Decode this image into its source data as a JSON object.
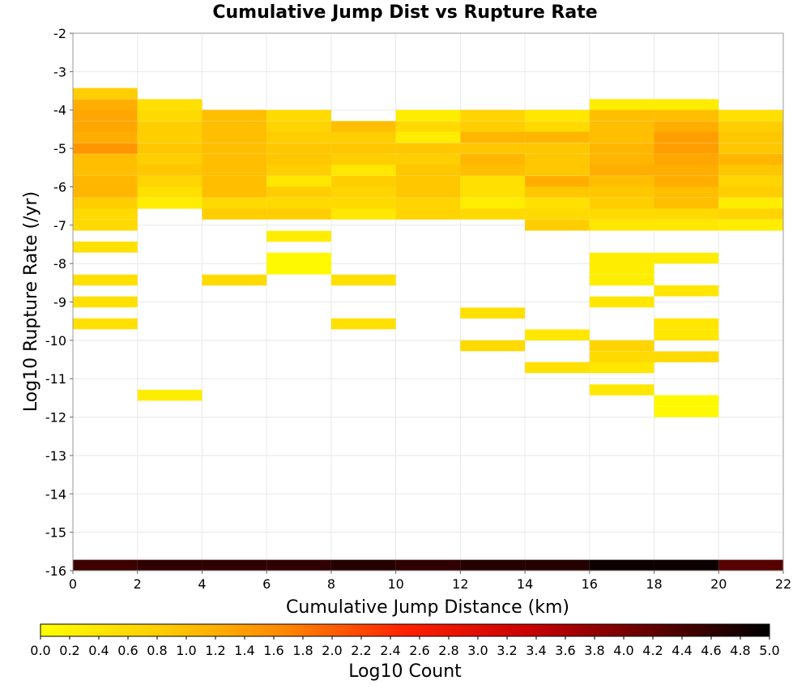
{
  "chart_data": {
    "type": "heatmap",
    "title": "Cumulative Jump Dist vs Rupture Rate",
    "xlabel": "Cumulative Jump Distance (km)",
    "ylabel": "Log10 Rupture Rate (/yr)",
    "colorbar_label": "Log10 Count",
    "xlim": [
      0,
      22
    ],
    "ylim": [
      -16,
      -2
    ],
    "x_ticks": [
      "0",
      "2",
      "4",
      "6",
      "8",
      "10",
      "12",
      "14",
      "16",
      "18",
      "20",
      "22"
    ],
    "y_ticks": [
      "-2",
      "-3",
      "-4",
      "-5",
      "-6",
      "-7",
      "-8",
      "-9",
      "-10",
      "-11",
      "-12",
      "-13",
      "-14",
      "-15",
      "-16"
    ],
    "colorbar_ticks": [
      "0.0",
      "0.2",
      "0.4",
      "0.6",
      "0.8",
      "1.0",
      "1.2",
      "1.4",
      "1.6",
      "1.8",
      "2.0",
      "2.2",
      "2.4",
      "2.6",
      "2.8",
      "3.0",
      "3.2",
      "3.4",
      "3.6",
      "3.8",
      "4.0",
      "4.2",
      "4.4",
      "4.6",
      "4.8",
      "5.0"
    ],
    "colorbar_range": [
      0,
      5
    ],
    "x_bin_width": 2,
    "y_bin_height": 0.2857,
    "grid": true,
    "colormap": [
      "#ffff00",
      "#ffcc00",
      "#ff8800",
      "#ff2200",
      "#cc0000",
      "#660000",
      "#000000"
    ],
    "columns": [
      {
        "x": 0,
        "cells": [
          [
            -3.57,
            0.8
          ],
          [
            -3.86,
            1.2
          ],
          [
            -4.14,
            1.3
          ],
          [
            -4.43,
            1.3
          ],
          [
            -4.71,
            1.2
          ],
          [
            -5.0,
            1.5
          ],
          [
            -5.29,
            1.0
          ],
          [
            -5.57,
            1.0
          ],
          [
            -5.86,
            1.1
          ],
          [
            -6.14,
            1.1
          ],
          [
            -6.43,
            0.8
          ],
          [
            -6.71,
            0.6
          ],
          [
            -7.0,
            0.6
          ],
          [
            -7.57,
            0.5
          ],
          [
            -8.43,
            0.5
          ],
          [
            -9.0,
            0.5
          ],
          [
            -9.57,
            0.5
          ],
          [
            -15.86,
            4.5
          ]
        ]
      },
      {
        "x": 2,
        "cells": [
          [
            -3.86,
            0.5
          ],
          [
            -4.14,
            0.6
          ],
          [
            -4.43,
            0.8
          ],
          [
            -4.71,
            0.8
          ],
          [
            -5.0,
            0.9
          ],
          [
            -5.29,
            0.8
          ],
          [
            -5.57,
            0.9
          ],
          [
            -5.86,
            0.7
          ],
          [
            -6.14,
            0.5
          ],
          [
            -6.43,
            0.3
          ],
          [
            -11.43,
            0.3
          ],
          [
            -15.86,
            4.6
          ]
        ]
      },
      {
        "x": 4,
        "cells": [
          [
            -4.14,
            1.0
          ],
          [
            -4.43,
            1.0
          ],
          [
            -4.71,
            1.0
          ],
          [
            -5.0,
            1.0
          ],
          [
            -5.29,
            1.0
          ],
          [
            -5.57,
            1.0
          ],
          [
            -5.86,
            1.0
          ],
          [
            -6.14,
            1.0
          ],
          [
            -6.43,
            0.6
          ],
          [
            -6.71,
            0.8
          ],
          [
            -8.43,
            0.6
          ],
          [
            -15.86,
            4.6
          ]
        ]
      },
      {
        "x": 6,
        "cells": [
          [
            -4.14,
            0.6
          ],
          [
            -4.43,
            0.7
          ],
          [
            -4.71,
            0.8
          ],
          [
            -5.0,
            0.9
          ],
          [
            -5.29,
            0.9
          ],
          [
            -5.57,
            0.8
          ],
          [
            -5.86,
            0.4
          ],
          [
            -6.14,
            0.8
          ],
          [
            -6.43,
            0.6
          ],
          [
            -6.71,
            0.8
          ],
          [
            -7.29,
            0.3
          ],
          [
            -7.86,
            0.1
          ],
          [
            -8.14,
            0.1
          ],
          [
            -15.86,
            4.6
          ]
        ]
      },
      {
        "x": 8,
        "cells": [
          [
            -4.43,
            1.0
          ],
          [
            -4.71,
            0.8
          ],
          [
            -5.0,
            0.9
          ],
          [
            -5.29,
            0.8
          ],
          [
            -5.57,
            0.4
          ],
          [
            -5.86,
            0.8
          ],
          [
            -6.14,
            0.7
          ],
          [
            -6.43,
            0.6
          ],
          [
            -6.71,
            0.4
          ],
          [
            -8.43,
            0.5
          ],
          [
            -9.57,
            0.5
          ],
          [
            -15.86,
            4.7
          ]
        ]
      },
      {
        "x": 10,
        "cells": [
          [
            -4.14,
            0.3
          ],
          [
            -4.43,
            0.6
          ],
          [
            -4.71,
            0.3
          ],
          [
            -5.0,
            0.9
          ],
          [
            -5.29,
            0.8
          ],
          [
            -5.57,
            0.9
          ],
          [
            -5.86,
            0.9
          ],
          [
            -6.14,
            0.9
          ],
          [
            -6.43,
            0.7
          ],
          [
            -6.71,
            0.7
          ],
          [
            -15.86,
            4.6
          ]
        ]
      },
      {
        "x": 12,
        "cells": [
          [
            -4.14,
            0.7
          ],
          [
            -4.43,
            0.8
          ],
          [
            -4.71,
            1.1
          ],
          [
            -5.0,
            0.9
          ],
          [
            -5.29,
            1.1
          ],
          [
            -5.57,
            1.0
          ],
          [
            -5.86,
            0.5
          ],
          [
            -6.14,
            0.5
          ],
          [
            -6.43,
            0.3
          ],
          [
            -6.71,
            0.6
          ],
          [
            -9.29,
            0.5
          ],
          [
            -10.14,
            0.6
          ],
          [
            -15.86,
            4.7
          ]
        ]
      },
      {
        "x": 14,
        "cells": [
          [
            -4.14,
            0.4
          ],
          [
            -4.43,
            0.6
          ],
          [
            -4.71,
            1.1
          ],
          [
            -5.0,
            0.9
          ],
          [
            -5.29,
            0.9
          ],
          [
            -5.57,
            0.9
          ],
          [
            -5.86,
            1.2
          ],
          [
            -6.14,
            0.9
          ],
          [
            -6.43,
            0.5
          ],
          [
            -6.71,
            0.6
          ],
          [
            -7.0,
            0.8
          ],
          [
            -9.86,
            0.4
          ],
          [
            -10.71,
            0.5
          ],
          [
            -15.86,
            4.7
          ]
        ]
      },
      {
        "x": 16,
        "cells": [
          [
            -3.86,
            0.3
          ],
          [
            -4.14,
            1.0
          ],
          [
            -4.43,
            1.0
          ],
          [
            -4.71,
            1.0
          ],
          [
            -5.0,
            1.1
          ],
          [
            -5.29,
            1.1
          ],
          [
            -5.57,
            1.2
          ],
          [
            -5.86,
            1.0
          ],
          [
            -6.14,
            0.9
          ],
          [
            -6.43,
            0.8
          ],
          [
            -6.71,
            0.6
          ],
          [
            -7.0,
            0.4
          ],
          [
            -7.86,
            0.3
          ],
          [
            -8.14,
            0.3
          ],
          [
            -8.43,
            0.3
          ],
          [
            -9.0,
            0.4
          ],
          [
            -10.14,
            0.7
          ],
          [
            -10.43,
            0.6
          ],
          [
            -10.71,
            0.4
          ],
          [
            -11.29,
            0.4
          ],
          [
            -15.86,
            4.9
          ]
        ]
      },
      {
        "x": 18,
        "cells": [
          [
            -3.86,
            0.3
          ],
          [
            -4.14,
            1.0
          ],
          [
            -4.43,
            1.2
          ],
          [
            -4.71,
            1.4
          ],
          [
            -5.0,
            1.4
          ],
          [
            -5.29,
            1.3
          ],
          [
            -5.57,
            1.2
          ],
          [
            -5.86,
            1.2
          ],
          [
            -6.14,
            1.0
          ],
          [
            -6.43,
            1.0
          ],
          [
            -6.71,
            0.6
          ],
          [
            -7.0,
            0.4
          ],
          [
            -7.86,
            0.3
          ],
          [
            -8.71,
            0.4
          ],
          [
            -9.57,
            0.4
          ],
          [
            -9.86,
            0.4
          ],
          [
            -10.43,
            0.6
          ],
          [
            -11.57,
            0.1
          ],
          [
            -11.86,
            0.1
          ],
          [
            -15.86,
            4.9
          ]
        ]
      },
      {
        "x": 20,
        "cells": [
          [
            -4.14,
            0.5
          ],
          [
            -4.43,
            0.8
          ],
          [
            -4.71,
            0.9
          ],
          [
            -5.0,
            0.9
          ],
          [
            -5.29,
            1.1
          ],
          [
            -5.57,
            0.9
          ],
          [
            -5.86,
            0.7
          ],
          [
            -6.14,
            0.8
          ],
          [
            -6.43,
            0.3
          ],
          [
            -6.71,
            0.7
          ],
          [
            -7.0,
            0.3
          ],
          [
            -15.86,
            4.3
          ]
        ]
      }
    ]
  }
}
